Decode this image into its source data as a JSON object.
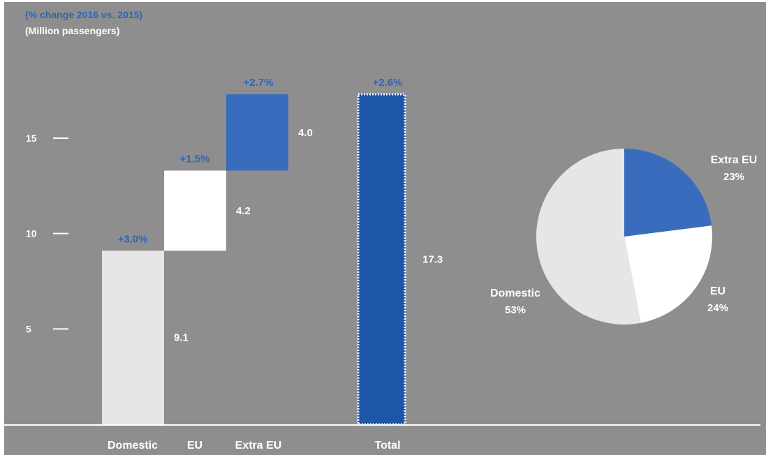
{
  "header": {
    "change_label": "(% change 2016 vs. 2015)",
    "unit_label": "(Million passengers)"
  },
  "colors": {
    "background": "#8e8e8e",
    "domestic": "#e6e6e6",
    "eu": "#ffffff",
    "extra_eu": "#3a6cbe",
    "total": "#1d56a6",
    "pct_text": "#2e64b8",
    "white_text": "#ffffff"
  },
  "chart_data": [
    {
      "type": "bar",
      "subtype": "waterfall",
      "categories": [
        "Domestic",
        "EU",
        "Extra EU",
        "Total"
      ],
      "values": [
        9.1,
        4.2,
        4.0,
        17.3
      ],
      "value_labels": [
        "9.1",
        "4.2",
        "4.0",
        "17.3"
      ],
      "pct_change_labels": [
        "+3.0%",
        "+1.5%",
        "+2.7%",
        "+2.6%"
      ],
      "y_ticks": [
        "5",
        "10",
        "15"
      ],
      "ylim": [
        0,
        20
      ],
      "grid": false
    },
    {
      "type": "pie",
      "labels": [
        "Extra EU",
        "EU",
        "Domestic"
      ],
      "percent_labels": [
        "23%",
        "24%",
        "53%"
      ],
      "values": [
        23,
        24,
        53
      ]
    }
  ]
}
